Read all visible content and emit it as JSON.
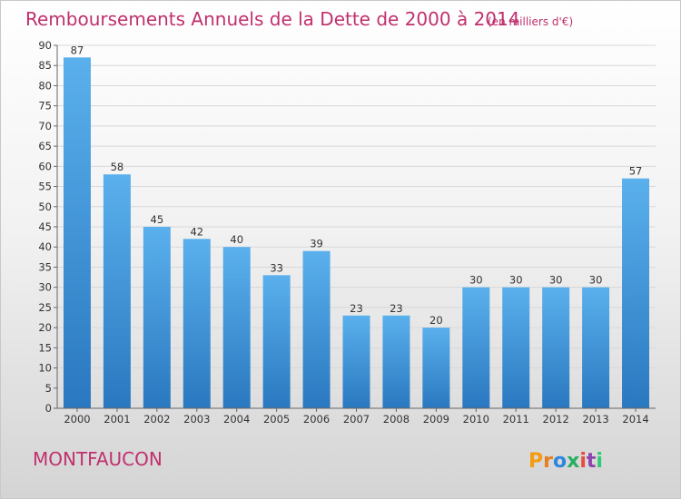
{
  "chart_data": {
    "type": "bar",
    "title": "Remboursements Annuels de la Dette de 2000 à 2014",
    "unit_note": "(en milliers d'€)",
    "categories": [
      "2000",
      "2001",
      "2002",
      "2003",
      "2004",
      "2005",
      "2006",
      "2007",
      "2008",
      "2009",
      "2010",
      "2011",
      "2012",
      "2013",
      "2014"
    ],
    "values": [
      87,
      58,
      45,
      42,
      40,
      33,
      39,
      23,
      23,
      20,
      30,
      30,
      30,
      30,
      57
    ],
    "ylim": [
      0,
      90
    ],
    "ytick_step": 5,
    "yticks": [
      "0",
      "5",
      "10",
      "15",
      "20",
      "25",
      "30",
      "35",
      "40",
      "45",
      "50",
      "55",
      "60",
      "65",
      "70",
      "75",
      "80",
      "85",
      "90"
    ],
    "bar_color": "#4a9fe0",
    "grid": true,
    "legend": "none"
  },
  "footer": {
    "commune": "MONTFAUCON",
    "logo": "Proxiti"
  },
  "colors": {
    "title": "#c0306e",
    "bar_light": "#5ab0ec",
    "bar_dark": "#2a78c0",
    "logo_letters": [
      "#f39c12",
      "#e67e22",
      "#2e86de",
      "#27ae60",
      "#e74c3c",
      "#8e44ad",
      "#2ecc71"
    ]
  }
}
